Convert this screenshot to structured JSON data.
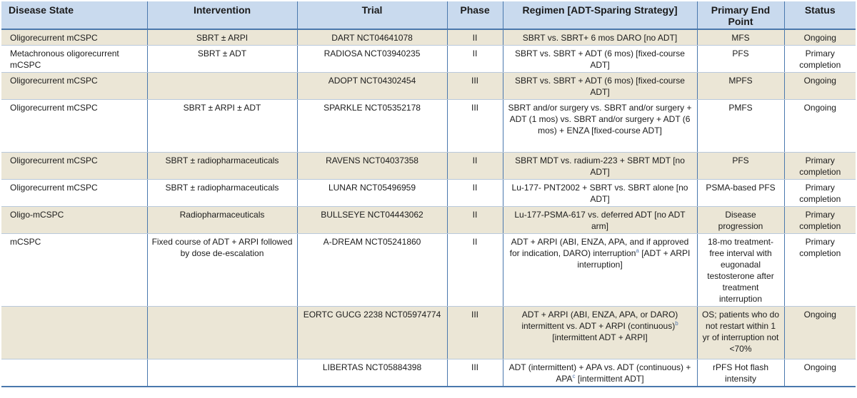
{
  "headers": [
    "Disease State",
    "Intervention",
    "Trial",
    "Phase",
    "Regimen [ADT-Sparing Strategy]",
    "Primary End Point",
    "Status"
  ],
  "rows": [
    {
      "disease": "Oligorecurrent mCSPC",
      "intervention": "SBRT ± ARPI",
      "trial": "DART NCT04641078",
      "phase": "II",
      "regimen": "SBRT vs. SBRT+ 6 mos DARO [no ADT]",
      "endpoint": "MFS",
      "status": "Ongoing"
    },
    {
      "disease": "Metachronous oligorecurrent mCSPC",
      "intervention": "SBRT ± ADT",
      "trial": "RADIOSA NCT03940235",
      "phase": "II",
      "regimen": "SBRT vs. SBRT + ADT (6 mos) [fixed-course ADT]",
      "endpoint": "PFS",
      "status": "Primary completion"
    },
    {
      "disease": "Oligorecurrent mCSPC",
      "intervention": "",
      "trial": "ADOPT NCT04302454",
      "phase": "III",
      "regimen": "SBRT vs. SBRT + ADT (6 mos) [fixed-course ADT]",
      "endpoint": "MPFS",
      "status": "Ongoing"
    },
    {
      "disease": "Oligorecurrent mCSPC",
      "intervention": "SBRT ± ARPI ± ADT",
      "trial": "SPARKLE NCT05352178",
      "phase": "III",
      "regimen": "SBRT and/or surgery vs. SBRT and/or surgery + ADT (1 mos) vs. SBRT and/or surgery + ADT (6 mos) + ENZA [fixed-course ADT]",
      "endpoint": "PMFS",
      "status": "Ongoing"
    },
    {
      "disease": "Oligorecurrent mCSPC",
      "intervention": "SBRT ± radiopharmaceuticals",
      "trial": "RAVENS NCT04037358",
      "phase": "II",
      "regimen": "SBRT MDT vs. radium-223 + SBRT MDT [no ADT]",
      "endpoint": "PFS",
      "status": "Primary completion"
    },
    {
      "disease": "Oligorecurrent mCSPC",
      "intervention": "SBRT ± radiopharmaceuticals",
      "trial": "LUNAR NCT05496959",
      "phase": "II",
      "regimen": "Lu-177- PNT2002 + SBRT vs. SBRT alone [no ADT]",
      "endpoint": "PSMA-based PFS",
      "status": "Primary completion"
    },
    {
      "disease": "Oligo-mCSPC",
      "intervention": "Radiopharmaceuticals",
      "trial": "BULLSEYE NCT04443062",
      "phase": "II",
      "regimen": "Lu-177-PSMA-617 vs. deferred ADT [no ADT arm]",
      "endpoint": "Disease progression",
      "status": "Primary completion"
    },
    {
      "disease": "mCSPC",
      "intervention": "Fixed course of ADT + ARPI followed by dose de-escalation",
      "trial": "A-DREAM NCT05241860",
      "phase": "II",
      "regimen": "ADT + ARPI (ABI, ENZA, APA, and if approved for indication, DARO) interruption",
      "regimen_sup": "a",
      "regimen_after": " [ADT + ARPI interruption]",
      "endpoint": "18-mo treatment-free interval with eugonadal testosterone after treatment interruption",
      "status": "Primary completion"
    },
    {
      "disease": "",
      "intervention": "",
      "trial": "EORTC GUCG 2238 NCT05974774",
      "phase": "III",
      "regimen": "ADT + ARPI (ABI, ENZA, APA, or DARO) intermittent vs. ADT + ARPI (continuous)",
      "regimen_sup": "b",
      "regimen_after": " [intermittent ADT + ARPI]",
      "endpoint": "OS; patients who do not restart within 1 yr of interruption not <70%",
      "status": "Ongoing"
    },
    {
      "disease": "",
      "intervention": "",
      "trial": "LIBERTAS NCT05884398",
      "phase": "III",
      "regimen": "ADT (intermittent) + APA vs. ADT (continuous) + APA",
      "regimen_sup": "c",
      "regimen_after": " [intermittent ADT]",
      "endpoint": "rPFS Hot flash intensity",
      "status": "Ongoing"
    }
  ]
}
